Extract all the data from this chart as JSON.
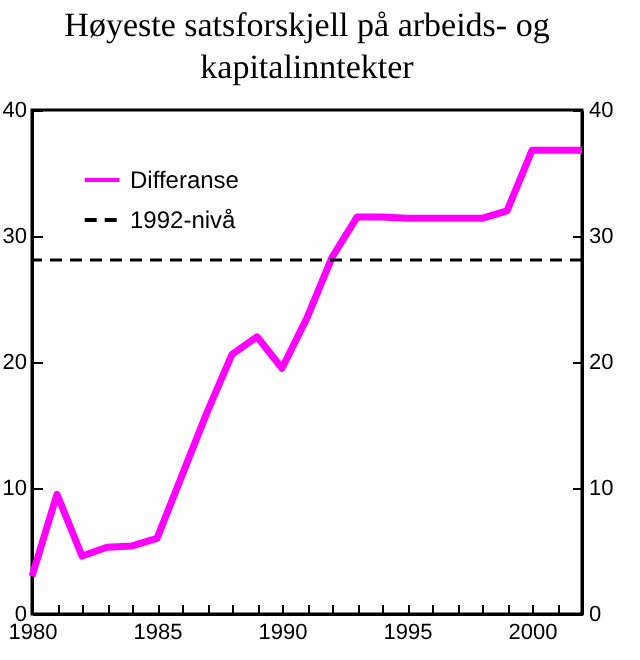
{
  "chart_data": {
    "type": "line",
    "title": "Høyeste satsforskjell på arbeids- og kapitalinntekter",
    "x": [
      1980,
      1981,
      1982,
      1983,
      1984,
      1985,
      1986,
      1987,
      1988,
      1989,
      1990,
      1991,
      1992,
      1993,
      1994,
      1995,
      1996,
      1997,
      1998,
      1999,
      2000,
      2001,
      2002
    ],
    "series": [
      {
        "name": "Differanse",
        "color": "#ff00ff",
        "values": [
          3,
          9.5,
          4.6,
          5.3,
          5.4,
          6,
          11,
          16,
          20.6,
          22,
          19.5,
          23.5,
          28.3,
          31.5,
          31.5,
          31.4,
          31.4,
          31.4,
          31.4,
          32,
          36.8,
          36.8,
          36.8
        ]
      }
    ],
    "ref_lines": [
      {
        "axis": "y",
        "value": 28.1,
        "label": "1992-nivå",
        "color": "#000000",
        "line_style": "dashed"
      }
    ],
    "xlim": [
      1980,
      2002
    ],
    "xticks": [
      1980,
      {
        "value": 1981,
        "label": null
      },
      {
        "value": 1982,
        "label": null
      },
      {
        "value": 1983,
        "label": null
      },
      {
        "value": 1984,
        "label": null
      },
      1985,
      {
        "value": 1986,
        "label": null
      },
      {
        "value": 1987,
        "label": null
      },
      {
        "value": 1988,
        "label": null
      },
      {
        "value": 1989,
        "label": null
      },
      1990,
      {
        "value": 1991,
        "label": null
      },
      {
        "value": 1992,
        "label": null
      },
      {
        "value": 1993,
        "label": null
      },
      {
        "value": 1994,
        "label": null
      },
      1995,
      {
        "value": 1996,
        "label": null
      },
      {
        "value": 1997,
        "label": null
      },
      {
        "value": 1998,
        "label": null
      },
      {
        "value": 1999,
        "label": null
      },
      2000,
      {
        "value": 2001,
        "label": null
      },
      {
        "value": 2002,
        "label": null
      }
    ],
    "ylim": [
      0,
      40
    ],
    "yticks": [
      0,
      10,
      20,
      30,
      40
    ],
    "y2lim": [
      0,
      40
    ],
    "y2ticks": [
      0,
      10,
      20,
      30,
      40
    ],
    "grid": false,
    "legend": "top left",
    "marker": "none",
    "line_style": "solid"
  }
}
